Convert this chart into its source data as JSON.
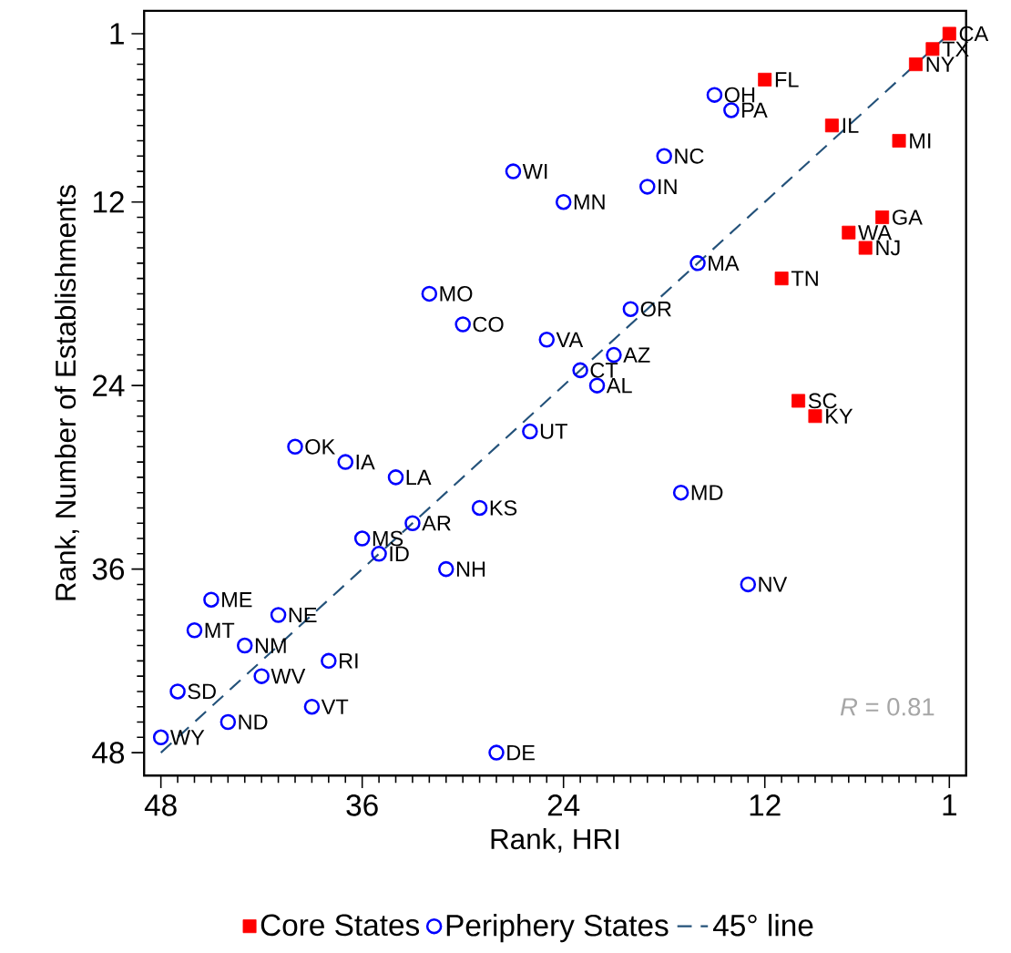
{
  "chart_data": {
    "type": "scatter",
    "xlabel": "Rank, HRI",
    "ylabel": "Rank, Number of Establishments",
    "xlim": [
      49,
      0
    ],
    "ylim": [
      49.5,
      -0.5
    ],
    "xticks": [
      48,
      36,
      24,
      12,
      1,
      {
        "value": 2,
        "label": null
      },
      {
        "value": 3,
        "label": null
      },
      {
        "value": 4,
        "label": null
      },
      {
        "value": 5,
        "label": null
      },
      {
        "value": 6,
        "label": null
      },
      {
        "value": 7,
        "label": null
      },
      {
        "value": 8,
        "label": null
      },
      {
        "value": 9,
        "label": null
      },
      {
        "value": 10,
        "label": null
      },
      {
        "value": 11,
        "label": null
      },
      {
        "value": 13,
        "label": null
      },
      {
        "value": 14,
        "label": null
      },
      {
        "value": 15,
        "label": null
      },
      {
        "value": 16,
        "label": null
      },
      {
        "value": 17,
        "label": null
      },
      {
        "value": 18,
        "label": null
      },
      {
        "value": 19,
        "label": null
      },
      {
        "value": 20,
        "label": null
      },
      {
        "value": 21,
        "label": null
      },
      {
        "value": 22,
        "label": null
      },
      {
        "value": 23,
        "label": null
      },
      {
        "value": 25,
        "label": null
      },
      {
        "value": 26,
        "label": null
      },
      {
        "value": 27,
        "label": null
      },
      {
        "value": 28,
        "label": null
      },
      {
        "value": 29,
        "label": null
      },
      {
        "value": 30,
        "label": null
      },
      {
        "value": 31,
        "label": null
      },
      {
        "value": 32,
        "label": null
      },
      {
        "value": 33,
        "label": null
      },
      {
        "value": 34,
        "label": null
      },
      {
        "value": 35,
        "label": null
      },
      {
        "value": 37,
        "label": null
      },
      {
        "value": 38,
        "label": null
      },
      {
        "value": 39,
        "label": null
      },
      {
        "value": 40,
        "label": null
      },
      {
        "value": 41,
        "label": null
      },
      {
        "value": 42,
        "label": null
      },
      {
        "value": 43,
        "label": null
      },
      {
        "value": 44,
        "label": null
      },
      {
        "value": 45,
        "label": null
      },
      {
        "value": 46,
        "label": null
      },
      {
        "value": 47,
        "label": null
      }
    ],
    "yticks": [
      48,
      36,
      24,
      12,
      1,
      {
        "value": 2,
        "label": null
      },
      {
        "value": 3,
        "label": null
      },
      {
        "value": 4,
        "label": null
      },
      {
        "value": 5,
        "label": null
      },
      {
        "value": 6,
        "label": null
      },
      {
        "value": 7,
        "label": null
      },
      {
        "value": 8,
        "label": null
      },
      {
        "value": 9,
        "label": null
      },
      {
        "value": 10,
        "label": null
      },
      {
        "value": 11,
        "label": null
      },
      {
        "value": 13,
        "label": null
      },
      {
        "value": 14,
        "label": null
      },
      {
        "value": 15,
        "label": null
      },
      {
        "value": 16,
        "label": null
      },
      {
        "value": 17,
        "label": null
      },
      {
        "value": 18,
        "label": null
      },
      {
        "value": 19,
        "label": null
      },
      {
        "value": 20,
        "label": null
      },
      {
        "value": 21,
        "label": null
      },
      {
        "value": 22,
        "label": null
      },
      {
        "value": 23,
        "label": null
      },
      {
        "value": 25,
        "label": null
      },
      {
        "value": 26,
        "label": null
      },
      {
        "value": 27,
        "label": null
      },
      {
        "value": 28,
        "label": null
      },
      {
        "value": 29,
        "label": null
      },
      {
        "value": 30,
        "label": null
      },
      {
        "value": 31,
        "label": null
      },
      {
        "value": 32,
        "label": null
      },
      {
        "value": 33,
        "label": null
      },
      {
        "value": 34,
        "label": null
      },
      {
        "value": 35,
        "label": null
      },
      {
        "value": 37,
        "label": null
      },
      {
        "value": 38,
        "label": null
      },
      {
        "value": 39,
        "label": null
      },
      {
        "value": 40,
        "label": null
      },
      {
        "value": 41,
        "label": null
      },
      {
        "value": 42,
        "label": null
      },
      {
        "value": 43,
        "label": null
      },
      {
        "value": 44,
        "label": null
      },
      {
        "value": 45,
        "label": null
      },
      {
        "value": 46,
        "label": null
      },
      {
        "value": 47,
        "label": null
      }
    ],
    "legend": "bottom",
    "series": [
      {
        "name": "Core States",
        "type": "scatter",
        "marker": "square",
        "color": "#ff0000",
        "x": [
          1,
          2,
          3,
          12,
          8,
          4,
          5,
          7,
          6,
          11,
          10,
          9
        ],
        "values": [
          1,
          2,
          3,
          4,
          7,
          8,
          13,
          14,
          15,
          17,
          25,
          26
        ]
      },
      {
        "name": "Periphery States",
        "type": "scatter",
        "marker": "circle",
        "color": "#0000ff",
        "x": [
          15,
          14,
          18,
          27,
          19,
          24,
          16,
          32,
          20,
          30,
          25,
          21,
          23,
          22,
          26,
          40,
          37,
          34,
          17,
          29,
          33,
          36,
          35,
          31,
          13,
          45,
          41,
          46,
          43,
          38,
          42,
          47,
          39,
          44,
          48,
          28
        ],
        "values": [
          5,
          6,
          9,
          10,
          11,
          12,
          16,
          18,
          19,
          20,
          21,
          22,
          23,
          24,
          27,
          28,
          29,
          30,
          31,
          32,
          33,
          34,
          35,
          36,
          37,
          38,
          39,
          40,
          41,
          42,
          43,
          44,
          45,
          46,
          47,
          48
        ]
      },
      {
        "name": "45° line",
        "type": "line",
        "marker": "none",
        "line_style": "dashed",
        "color": "#24527a",
        "x": [
          48,
          1
        ],
        "values": [
          48,
          1
        ]
      }
    ],
    "annotations": [
      {
        "text": "CA",
        "x": 1,
        "y": 1
      },
      {
        "text": "TX",
        "x": 2,
        "y": 2
      },
      {
        "text": "NY",
        "x": 3,
        "y": 3
      },
      {
        "text": "FL",
        "x": 12,
        "y": 4
      },
      {
        "text": "IL",
        "x": 8,
        "y": 7
      },
      {
        "text": "MI",
        "x": 4,
        "y": 8
      },
      {
        "text": "GA",
        "x": 5,
        "y": 13
      },
      {
        "text": "WA",
        "x": 7,
        "y": 14
      },
      {
        "text": "NJ",
        "x": 6,
        "y": 15
      },
      {
        "text": "TN",
        "x": 11,
        "y": 17
      },
      {
        "text": "SC",
        "x": 10,
        "y": 25
      },
      {
        "text": "KY",
        "x": 9,
        "y": 26
      },
      {
        "text": "OH",
        "x": 15,
        "y": 5
      },
      {
        "text": "PA",
        "x": 14,
        "y": 6
      },
      {
        "text": "NC",
        "x": 18,
        "y": 9
      },
      {
        "text": "WI",
        "x": 27,
        "y": 10
      },
      {
        "text": "IN",
        "x": 19,
        "y": 11
      },
      {
        "text": "MN",
        "x": 24,
        "y": 12
      },
      {
        "text": "MA",
        "x": 16,
        "y": 16
      },
      {
        "text": "MO",
        "x": 32,
        "y": 18
      },
      {
        "text": "OR",
        "x": 20,
        "y": 19
      },
      {
        "text": "CO",
        "x": 30,
        "y": 20
      },
      {
        "text": "VA",
        "x": 25,
        "y": 21
      },
      {
        "text": "AZ",
        "x": 21,
        "y": 22
      },
      {
        "text": "CT",
        "x": 23,
        "y": 23
      },
      {
        "text": "AL",
        "x": 22,
        "y": 24
      },
      {
        "text": "UT",
        "x": 26,
        "y": 27
      },
      {
        "text": "OK",
        "x": 40,
        "y": 28
      },
      {
        "text": "IA",
        "x": 37,
        "y": 29
      },
      {
        "text": "LA",
        "x": 34,
        "y": 30
      },
      {
        "text": "MD",
        "x": 17,
        "y": 31
      },
      {
        "text": "KS",
        "x": 29,
        "y": 32
      },
      {
        "text": "AR",
        "x": 33,
        "y": 33
      },
      {
        "text": "MS",
        "x": 36,
        "y": 34
      },
      {
        "text": "ID",
        "x": 35,
        "y": 35
      },
      {
        "text": "NH",
        "x": 31,
        "y": 36
      },
      {
        "text": "NV",
        "x": 13,
        "y": 37
      },
      {
        "text": "ME",
        "x": 45,
        "y": 38
      },
      {
        "text": "NE",
        "x": 41,
        "y": 39
      },
      {
        "text": "MT",
        "x": 46,
        "y": 40
      },
      {
        "text": "NM",
        "x": 43,
        "y": 41
      },
      {
        "text": "RI",
        "x": 38,
        "y": 42
      },
      {
        "text": "WV",
        "x": 42,
        "y": 43
      },
      {
        "text": "SD",
        "x": 47,
        "y": 44
      },
      {
        "text": "VT",
        "x": 39,
        "y": 45
      },
      {
        "text": "ND",
        "x": 44,
        "y": 46
      },
      {
        "text": "WY",
        "x": 48,
        "y": 47
      },
      {
        "text": "DE",
        "x": 28,
        "y": 48
      },
      "*R* = 0.81"
    ]
  }
}
